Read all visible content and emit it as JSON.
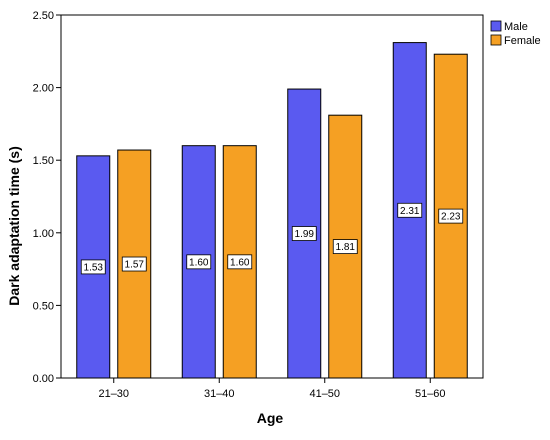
{
  "chart_data": {
    "type": "bar",
    "xlabel": "Age",
    "ylabel": "Dark adaptation time (s)",
    "ylim": [
      0,
      2.5
    ],
    "yticks": [
      "0.00",
      "0.50",
      "1.00",
      "1.50",
      "2.00",
      "2.50"
    ],
    "categories": [
      "21–30",
      "31–40",
      "41–50",
      "51–60"
    ],
    "series": [
      {
        "name": "Male",
        "color": "#5a5af0",
        "values": [
          1.53,
          1.6,
          1.99,
          2.31
        ],
        "labels": [
          "1.53",
          "1.60",
          "1.99",
          "2.31"
        ]
      },
      {
        "name": "Female",
        "color": "#f5a023",
        "values": [
          1.57,
          1.6,
          1.81,
          2.23
        ],
        "labels": [
          "1.57",
          "1.60",
          "1.81",
          "2.23"
        ]
      }
    ],
    "legend_position": "top-right",
    "grid": false
  }
}
